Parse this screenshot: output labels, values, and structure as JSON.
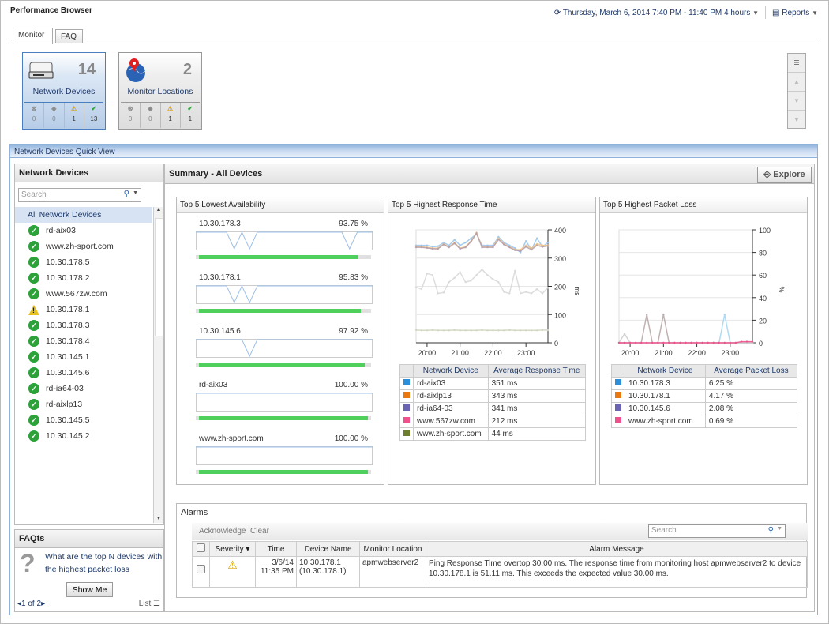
{
  "app_title": "Performance Browser",
  "header": {
    "time_range": "Thursday, March 6, 2014 7:40 PM - 11:40 PM 4 hours",
    "reports_label": "Reports"
  },
  "tabs": [
    {
      "label": "Monitor",
      "active": true
    },
    {
      "label": "FAQ",
      "active": false
    }
  ],
  "tiles": [
    {
      "label": "Network Devices",
      "count": "14",
      "selected": true,
      "stats": [
        "0",
        "0",
        "1",
        "13"
      ]
    },
    {
      "label": "Monitor Locations",
      "count": "2",
      "selected": false,
      "stats": [
        "0",
        "0",
        "1",
        "1"
      ]
    }
  ],
  "quick_view_title": "Network Devices Quick View",
  "left_panel": {
    "title": "Network Devices",
    "search_placeholder": "Search",
    "all_label": "All Network Devices",
    "devices": [
      {
        "name": "rd-aix03",
        "status": "ok"
      },
      {
        "name": "www.zh-sport.com",
        "status": "ok"
      },
      {
        "name": "10.30.178.5",
        "status": "ok"
      },
      {
        "name": "10.30.178.2",
        "status": "ok"
      },
      {
        "name": "www.567zw.com",
        "status": "ok"
      },
      {
        "name": "10.30.178.1",
        "status": "warning"
      },
      {
        "name": "10.30.178.3",
        "status": "ok"
      },
      {
        "name": "10.30.178.4",
        "status": "ok"
      },
      {
        "name": "10.30.145.1",
        "status": "ok"
      },
      {
        "name": "10.30.145.6",
        "status": "ok"
      },
      {
        "name": "rd-ia64-03",
        "status": "ok"
      },
      {
        "name": "rd-aixlp13",
        "status": "ok"
      },
      {
        "name": "10.30.145.5",
        "status": "ok"
      },
      {
        "name": "10.30.145.2",
        "status": "ok"
      }
    ]
  },
  "faq": {
    "title": "FAQts",
    "question": "What are the top N devices with the highest packet loss",
    "button": "Show Me",
    "pager": "1 of 2",
    "list_label": "List"
  },
  "summary": {
    "title": "Summary  -  All Devices",
    "explore_label": "Explore"
  },
  "availability": {
    "title": "Top 5 Lowest Availability",
    "items": [
      {
        "device": "10.30.178.3",
        "value": "93.75 %",
        "percent": 93.75,
        "dips": [
          5,
          7,
          20
        ]
      },
      {
        "device": "10.30.178.1",
        "value": "95.83 %",
        "percent": 95.83,
        "dips": [
          5,
          7
        ]
      },
      {
        "device": "10.30.145.6",
        "value": "97.92 %",
        "percent": 97.92,
        "dips": [
          7
        ]
      },
      {
        "device": "rd-aix03",
        "value": "100.00 %",
        "percent": 100,
        "dips": []
      },
      {
        "device": "www.zh-sport.com",
        "value": "100.00 %",
        "percent": 100,
        "dips": []
      }
    ]
  },
  "response": {
    "title": "Top 5 Highest Response Time",
    "headers": [
      "Network Device",
      "Average Response Time"
    ],
    "rows": [
      {
        "device": "rd-aix03",
        "value": "351 ms",
        "color": "#2b8fdc"
      },
      {
        "device": "rd-aixlp13",
        "value": "343 ms",
        "color": "#e8780f"
      },
      {
        "device": "rd-ia64-03",
        "value": "341 ms",
        "color": "#6b64b5"
      },
      {
        "device": "www.567zw.com",
        "value": "212 ms",
        "color": "#f0508c"
      },
      {
        "device": "www.zh-sport.com",
        "value": "44 ms",
        "color": "#6e7e30"
      }
    ]
  },
  "packet_loss": {
    "title": "Top 5 Highest Packet Loss",
    "headers": [
      "Network Device",
      "Average Packet Loss"
    ],
    "rows": [
      {
        "device": "10.30.178.3",
        "value": "6.25 %",
        "color": "#2b8fdc"
      },
      {
        "device": "10.30.178.1",
        "value": "4.17 %",
        "color": "#e8780f"
      },
      {
        "device": "10.30.145.6",
        "value": "2.08 %",
        "color": "#6b64b5"
      },
      {
        "device": "www.zh-sport.com",
        "value": "0.69 %",
        "color": "#f0508c"
      }
    ]
  },
  "chart_data": [
    {
      "type": "line",
      "ylabel": "ms",
      "ylim": [
        0,
        400
      ],
      "yticks": [
        "0",
        "100",
        "200",
        "300",
        "400"
      ],
      "xticks": [
        "20:00",
        "21:00",
        "22:00",
        "23:00"
      ],
      "x": [
        "19:40",
        "19:50",
        "20:00",
        "20:10",
        "20:20",
        "20:30",
        "20:40",
        "20:50",
        "21:00",
        "21:10",
        "21:20",
        "21:30",
        "21:40",
        "21:50",
        "22:00",
        "22:10",
        "22:20",
        "22:30",
        "22:40",
        "22:50",
        "23:00",
        "23:10",
        "23:20",
        "23:30",
        "23:40"
      ],
      "series": [
        {
          "name": "rd-aix03",
          "values": [
            345,
            345,
            345,
            340,
            342,
            355,
            345,
            365,
            345,
            355,
            370,
            385,
            345,
            345,
            345,
            375,
            355,
            345,
            335,
            320,
            360,
            330,
            370,
            340,
            355
          ]
        },
        {
          "name": "rd-aixlp13",
          "values": [
            340,
            340,
            338,
            335,
            335,
            350,
            340,
            355,
            335,
            340,
            360,
            390,
            340,
            340,
            340,
            370,
            350,
            340,
            330,
            330,
            345,
            335,
            350,
            345,
            345
          ]
        },
        {
          "name": "rd-ia64-03",
          "values": [
            338,
            338,
            336,
            333,
            333,
            348,
            338,
            352,
            333,
            338,
            358,
            388,
            338,
            338,
            338,
            366,
            348,
            338,
            328,
            325,
            340,
            330,
            345,
            340,
            343
          ]
        },
        {
          "name": "www.567zw.com",
          "values": [
            197,
            190,
            245,
            240,
            175,
            178,
            215,
            230,
            250,
            215,
            220,
            240,
            260,
            240,
            225,
            215,
            180,
            175,
            255,
            175,
            180,
            175,
            190,
            175,
            195
          ]
        },
        {
          "name": "www.zh-sport.com",
          "values": [
            45,
            44,
            44,
            45,
            44,
            44,
            44,
            45,
            44,
            44,
            44,
            44,
            45,
            44,
            44,
            44,
            44,
            45,
            44,
            44,
            44,
            44,
            44,
            45,
            45
          ]
        }
      ]
    },
    {
      "type": "line",
      "ylabel": "%",
      "ylim": [
        0,
        100
      ],
      "yticks": [
        "0",
        "20",
        "40",
        "60",
        "80",
        "100"
      ],
      "xticks": [
        "20:00",
        "21:00",
        "22:00",
        "23:00"
      ],
      "x": [
        "19:40",
        "19:50",
        "20:00",
        "20:10",
        "20:20",
        "20:30",
        "20:40",
        "20:50",
        "21:00",
        "21:10",
        "21:20",
        "21:30",
        "21:40",
        "21:50",
        "22:00",
        "22:10",
        "22:20",
        "22:30",
        "22:40",
        "22:50",
        "23:00",
        "23:10",
        "23:20",
        "23:30",
        "23:40"
      ],
      "series": [
        {
          "name": "10.30.178.3",
          "values": [
            0,
            0,
            0,
            0,
            0,
            0,
            0,
            0,
            0,
            0,
            0,
            0,
            0,
            0,
            0,
            0,
            0,
            0,
            0,
            25,
            0,
            0,
            0,
            0,
            0
          ]
        },
        {
          "name": "10.30.178.1",
          "values": [
            0,
            0,
            0,
            0,
            0,
            25,
            0,
            0,
            25,
            0,
            0,
            0,
            0,
            0,
            0,
            0,
            0,
            0,
            0,
            0,
            0,
            0,
            0,
            0,
            0
          ]
        },
        {
          "name": "10.30.145.6",
          "values": [
            0,
            8,
            0,
            0,
            0,
            0,
            0,
            0,
            0,
            0,
            0,
            0,
            0,
            0,
            0,
            0,
            0,
            0,
            0,
            0,
            0,
            0,
            0,
            0,
            0
          ]
        },
        {
          "name": "www.zh-sport.com",
          "values": [
            0,
            0,
            0,
            0,
            0,
            0,
            0,
            0,
            0,
            0,
            0,
            0,
            0,
            0,
            0,
            0,
            0,
            0,
            0,
            0,
            0,
            0,
            1,
            1,
            1
          ]
        }
      ]
    }
  ],
  "alarms": {
    "title": "Alarms",
    "actions": [
      "Acknowledge",
      "Clear"
    ],
    "search_placeholder": "Search",
    "columns": [
      "Severity",
      "Time",
      "Device Name",
      "Monitor Location",
      "Alarm Message"
    ],
    "rows": [
      {
        "severity": "warning",
        "time": "3/6/14 11:35 PM",
        "device": "10.30.178.1 (10.30.178.1)",
        "location": "apmwebserver2",
        "message": "Ping Response Time overtop 30.00 ms. The response time from monitoring host apmwebserver2 to device 10.30.178.1 is 51.11 ms. This exceeds the expected value 30.00 ms."
      }
    ]
  }
}
